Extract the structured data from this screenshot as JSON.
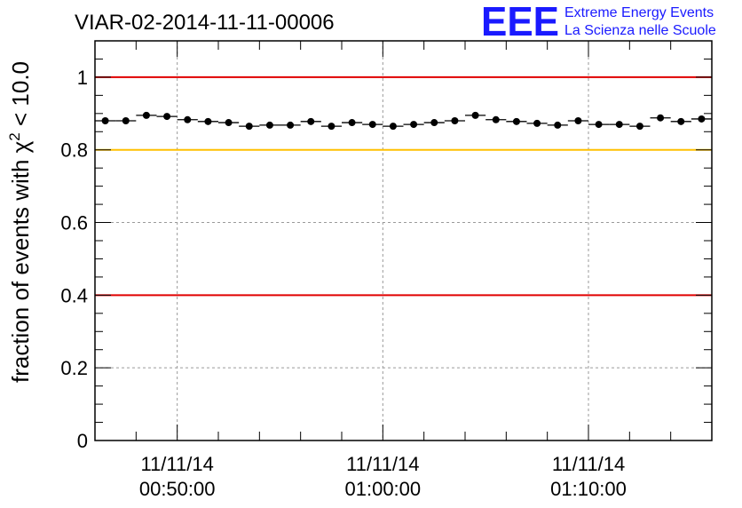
{
  "logo": {
    "mark": "EEE",
    "line1": "Extreme Energy Events",
    "line2": "La Scienza nelle Scuole",
    "color": "#1a1aff"
  },
  "chart_data": {
    "type": "scatter",
    "title": "VIAR-02-2014-11-11-00006",
    "ylabel_pre": "fraction of events with ",
    "ylabel_sym": "χ",
    "ylabel_sup": "2",
    "ylabel_post": " < 10.0",
    "xlabel": "",
    "x_unit": "minutes since 00:46:00",
    "xlim": [
      0,
      30
    ],
    "ylim": [
      0,
      1.1
    ],
    "y_ticks": [
      0,
      0.2,
      0.4,
      0.6,
      0.8,
      1
    ],
    "y_tick_labels": [
      "0",
      "0.2",
      "0.4",
      "0.6",
      "0.8",
      "1"
    ],
    "x_ticks": [
      {
        "x": 4,
        "date": "11/11/14",
        "time": "00:50:00"
      },
      {
        "x": 14,
        "date": "11/11/14",
        "time": "01:00:00"
      },
      {
        "x": 24,
        "date": "11/11/14",
        "time": "01:10:00"
      }
    ],
    "grid": true,
    "reference_lines": [
      {
        "y": 1.0,
        "color": "#e00000"
      },
      {
        "y": 0.8,
        "color": "#ffc000"
      },
      {
        "y": 0.4,
        "color": "#e00000"
      }
    ],
    "bin_width": 1,
    "x": [
      0.5,
      1.5,
      2.5,
      3.5,
      4.5,
      5.5,
      6.5,
      7.5,
      8.5,
      9.5,
      10.5,
      11.5,
      12.5,
      13.5,
      14.5,
      15.5,
      16.5,
      17.5,
      18.5,
      19.5,
      20.5,
      21.5,
      22.5,
      23.5,
      24.5,
      25.5,
      26.5,
      27.5,
      28.5,
      29.5
    ],
    "values": [
      0.88,
      0.88,
      0.895,
      0.892,
      0.883,
      0.878,
      0.875,
      0.865,
      0.868,
      0.868,
      0.878,
      0.865,
      0.875,
      0.87,
      0.865,
      0.87,
      0.875,
      0.88,
      0.895,
      0.883,
      0.878,
      0.873,
      0.868,
      0.88,
      0.87,
      0.87,
      0.865,
      0.888,
      0.878,
      0.885
    ]
  }
}
